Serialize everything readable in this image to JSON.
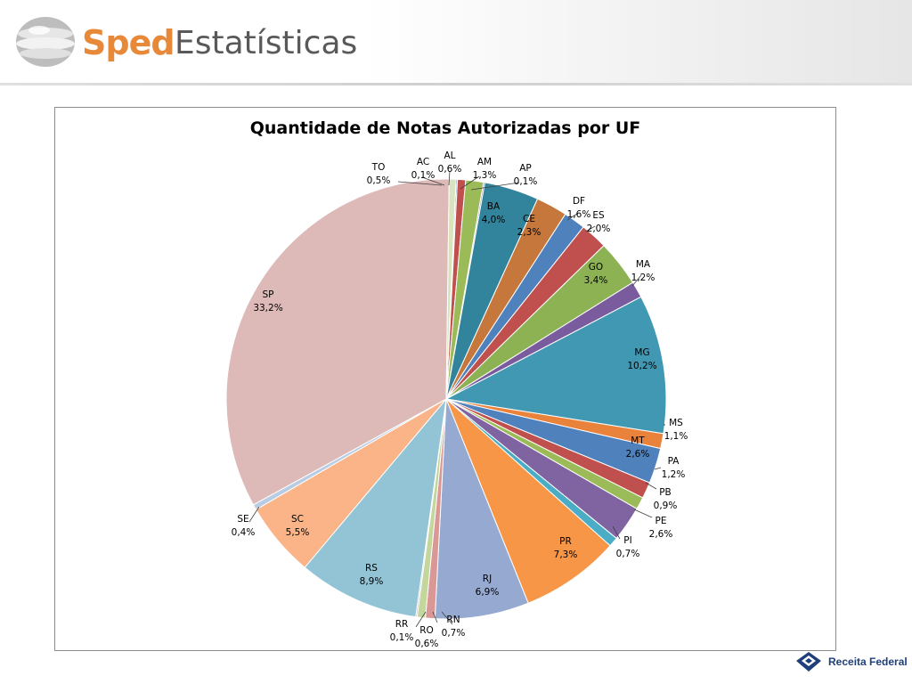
{
  "header": {
    "logo_text": "Sped",
    "title": "Estatísticas"
  },
  "footer": {
    "brand": "Receita Federal"
  },
  "chart_data": {
    "type": "pie",
    "title": "Quantidade de Notas Autorizadas por UF",
    "slices": [
      {
        "label": "AC",
        "value": 0.1,
        "display": "0,1%",
        "color": "#4f81bd"
      },
      {
        "label": "AL",
        "value": 0.6,
        "display": "0,6%",
        "color": "#c0504d"
      },
      {
        "label": "AM",
        "value": 1.3,
        "display": "1,3%",
        "color": "#9bbb59"
      },
      {
        "label": "AP",
        "value": 0.1,
        "display": "0,1%",
        "color": "#8064a2"
      },
      {
        "label": "BA",
        "value": 4.0,
        "display": "4,0%",
        "color": "#31849b"
      },
      {
        "label": "CE",
        "value": 2.3,
        "display": "2,3%",
        "color": "#c5773c"
      },
      {
        "label": "DF",
        "value": 1.6,
        "display": "1,6%",
        "color": "#4f81bd"
      },
      {
        "label": "ES",
        "value": 2.0,
        "display": "2,0%",
        "color": "#c0504d"
      },
      {
        "label": "GO",
        "value": 3.4,
        "display": "3,4%",
        "color": "#8db254"
      },
      {
        "label": "MA",
        "value": 1.2,
        "display": "1,2%",
        "color": "#7a5c9e"
      },
      {
        "label": "MG",
        "value": 10.2,
        "display": "10,2%",
        "color": "#4198b3"
      },
      {
        "label": "MS",
        "value": 1.1,
        "display": "1,1%",
        "color": "#e9833b"
      },
      {
        "label": "MT",
        "value": 2.6,
        "display": "2,6%",
        "color": "#4f81bd"
      },
      {
        "label": "PA",
        "value": 1.2,
        "display": "1,2%",
        "color": "#c0504d"
      },
      {
        "label": "PB",
        "value": 0.9,
        "display": "0,9%",
        "color": "#9bbb59"
      },
      {
        "label": "PE",
        "value": 2.6,
        "display": "2,6%",
        "color": "#8064a2"
      },
      {
        "label": "PI",
        "value": 0.7,
        "display": "0,7%",
        "color": "#4bacc6"
      },
      {
        "label": "PR",
        "value": 7.3,
        "display": "7,3%",
        "color": "#f79646"
      },
      {
        "label": "RJ",
        "value": 6.9,
        "display": "6,9%",
        "color": "#95a9d1"
      },
      {
        "label": "RN",
        "value": 0.7,
        "display": "0,7%",
        "color": "#d99795"
      },
      {
        "label": "RO",
        "value": 0.6,
        "display": "0,6%",
        "color": "#c3d69b"
      },
      {
        "label": "RR",
        "value": 0.1,
        "display": "0,1%",
        "color": "#b2a2c7"
      },
      {
        "label": "RS",
        "value": 8.9,
        "display": "8,9%",
        "color": "#93c4d6"
      },
      {
        "label": "SC",
        "value": 5.5,
        "display": "5,5%",
        "color": "#fab487"
      },
      {
        "label": "SE",
        "value": 0.4,
        "display": "0,4%",
        "color": "#b8cce4"
      },
      {
        "label": "SP",
        "value": 33.2,
        "display": "33,2%",
        "color": "#ddb9b8"
      },
      {
        "label": "TO",
        "value": 0.5,
        "display": "0,5%",
        "color": "#d7e4bd"
      }
    ]
  }
}
